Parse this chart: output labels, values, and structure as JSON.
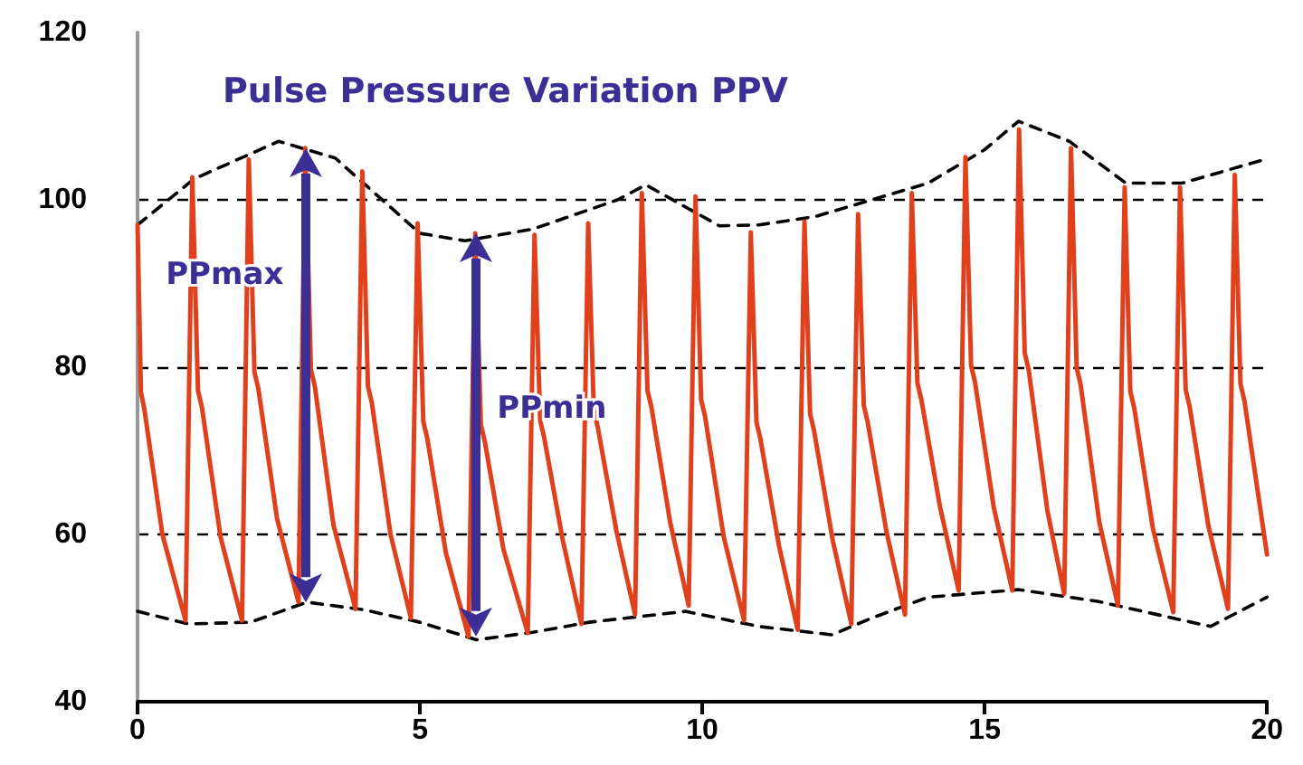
{
  "chart_data": {
    "type": "line",
    "title": "Pulse Pressure Variation PPV",
    "xlim": [
      0,
      20
    ],
    "xticks": [
      0,
      5,
      10,
      15,
      20
    ],
    "ylim": [
      40,
      120
    ],
    "yticks": [
      40,
      60,
      80,
      100,
      120
    ],
    "grid": "y",
    "marker": "none",
    "series": [
      {
        "color": "#e0401c",
        "line_style": "solid",
        "x": [
          0,
          0.06,
          0.12,
          0.44,
          0.85,
          0.97,
          1.07,
          1.14,
          1.47,
          1.85,
          1.97,
          2.07,
          2.14,
          2.47,
          2.85,
          2.97,
          3.07,
          3.14,
          3.47,
          3.86,
          3.98,
          4.08,
          4.15,
          4.48,
          4.84,
          4.96,
          5.06,
          5.13,
          5.46,
          5.86,
          5.98,
          6.08,
          6.15,
          6.48,
          6.91,
          7.03,
          7.13,
          7.2,
          7.53,
          7.86,
          7.98,
          8.08,
          8.15,
          8.48,
          8.81,
          8.93,
          9.03,
          9.1,
          9.43,
          9.76,
          9.88,
          9.98,
          10.05,
          10.38,
          10.74,
          10.86,
          10.96,
          11.03,
          11.36,
          11.69,
          11.81,
          11.91,
          11.98,
          12.31,
          12.64,
          12.76,
          12.86,
          12.93,
          13.26,
          13.59,
          13.71,
          13.81,
          13.88,
          14.21,
          14.54,
          14.66,
          14.76,
          14.83,
          15.16,
          15.49,
          15.61,
          15.71,
          15.78,
          16.11,
          16.41,
          16.53,
          16.63,
          16.7,
          17.03,
          17.36,
          17.48,
          17.58,
          17.65,
          17.98,
          18.34,
          18.46,
          18.56,
          18.63,
          18.96,
          19.31,
          19.43,
          19.53,
          19.6,
          20
        ],
        "values": [
          97,
          77,
          75,
          60,
          49.7,
          102.7,
          77.2,
          75.2,
          59.7,
          49.7,
          104.8,
          79.4,
          77.4,
          61.9,
          51.9,
          106.2,
          79.7,
          77.7,
          61.1,
          51.1,
          103.4,
          77.7,
          75.7,
          60,
          50,
          97.2,
          73.5,
          71.5,
          57.8,
          47.8,
          96,
          73.1,
          71.1,
          58.2,
          48.2,
          95.8,
          73.6,
          71.6,
          59.3,
          49.3,
          97.2,
          74.8,
          72.8,
          60.4,
          50.4,
          100.8,
          77.2,
          75.2,
          61.5,
          51.5,
          100.4,
          76.1,
          74.1,
          59.7,
          49.7,
          96.1,
          73.4,
          71.4,
          58.6,
          48.6,
          97.4,
          74.4,
          72.4,
          59.3,
          49.3,
          98.3,
          75.4,
          73.4,
          60.4,
          50.4,
          100.8,
          78.1,
          76.1,
          63.3,
          53.3,
          105.1,
          80.2,
          78.2,
          63.3,
          53.3,
          108.4,
          81.7,
          79.7,
          62.9,
          52.9,
          106.2,
          79.9,
          77.9,
          61.5,
          51.5,
          101.5,
          77.1,
          75.1,
          60.7,
          50.7,
          101.5,
          77.3,
          75.3,
          61.1,
          51.1,
          103,
          78,
          76,
          57.6
        ]
      },
      {
        "color": "#000000",
        "line_style": "dashed",
        "x": [
          0,
          1,
          2.5,
          3.5,
          5,
          5.8,
          7,
          8.5,
          9,
          10.3,
          11,
          12,
          13,
          14,
          15,
          15.6,
          16.5,
          17.5,
          18.5,
          20
        ],
        "values": [
          97,
          102.5,
          107,
          105,
          96,
          95.1,
          96.5,
          100,
          101.8,
          96.9,
          97,
          98,
          100,
          102,
          106,
          109.4,
          107,
          102,
          102,
          104.9
        ]
      },
      {
        "color": "#000000",
        "line_style": "dashed",
        "x": [
          0,
          0.9,
          2,
          3,
          4,
          5,
          6,
          7,
          8,
          9.7,
          11,
          12.3,
          13,
          14,
          15.6,
          17,
          18,
          19,
          20
        ],
        "values": [
          50.8,
          49.3,
          49.5,
          51.9,
          51,
          49.5,
          47.4,
          48.3,
          49.5,
          50.8,
          49,
          48,
          50,
          52.5,
          53.4,
          52,
          50.5,
          49,
          52.5
        ]
      }
    ],
    "annotations": [
      {
        "text": "PPmax",
        "x": 2.97,
        "y": 91
      },
      {
        "text": "PPmin",
        "x": 5.98,
        "y": 75
      }
    ]
  }
}
